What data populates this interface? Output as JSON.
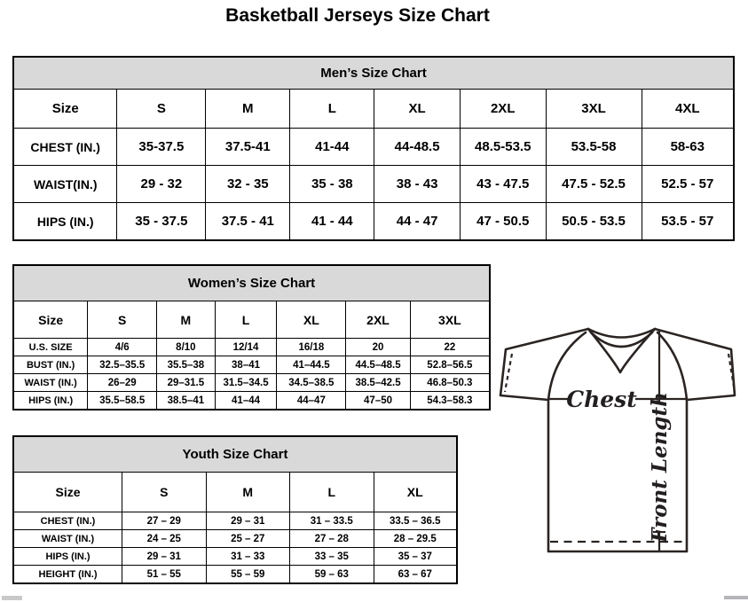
{
  "page_title": "Basketball Jerseys Size Chart",
  "colors": {
    "table_header_fill": "#d9d9d9",
    "border": "#000000",
    "diagram_ink": "#2a2422",
    "background": "#ffffff"
  },
  "tables": {
    "mens": {
      "title": "Men’s Size Chart",
      "columns": [
        "Size",
        "S",
        "M",
        "L",
        "XL",
        "2XL",
        "3XL",
        "4XL"
      ],
      "rows": [
        {
          "label": "CHEST (IN.)",
          "values": [
            "35-37.5",
            "37.5-41",
            "41-44",
            "44-48.5",
            "48.5-53.5",
            "53.5-58",
            "58-63"
          ]
        },
        {
          "label": "WAIST(IN.)",
          "values": [
            "29 - 32",
            "32 - 35",
            "35 - 38",
            "38 - 43",
            "43 - 47.5",
            "47.5 - 52.5",
            "52.5 - 57"
          ]
        },
        {
          "label": "HIPS (IN.)",
          "values": [
            "35 - 37.5",
            "37.5 - 41",
            "41 - 44",
            "44 - 47",
            "47 - 50.5",
            "50.5 - 53.5",
            "53.5 - 57"
          ]
        }
      ]
    },
    "womens": {
      "title": "Women’s Size Chart",
      "columns": [
        "Size",
        "S",
        "M",
        "L",
        "XL",
        "2XL",
        "3XL"
      ],
      "rows": [
        {
          "label": "U.S. SIZE",
          "values": [
            "4/6",
            "8/10",
            "12/14",
            "16/18",
            "20",
            "22"
          ]
        },
        {
          "label": "BUST (IN.)",
          "values": [
            "32.5–35.5",
            "35.5–38",
            "38–41",
            "41–44.5",
            "44.5–48.5",
            "52.8–56.5"
          ]
        },
        {
          "label": "WAIST (IN.)",
          "values": [
            "26–29",
            "29–31.5",
            "31.5–34.5",
            "34.5–38.5",
            "38.5–42.5",
            "46.8–50.3"
          ]
        },
        {
          "label": "HIPS (IN.)",
          "values": [
            "35.5–58.5",
            "38.5–41",
            "41–44",
            "44–47",
            "47–50",
            "54.3–58.3"
          ]
        }
      ]
    },
    "youth": {
      "title": "Youth Size Chart",
      "columns": [
        "Size",
        "S",
        "M",
        "L",
        "XL"
      ],
      "rows": [
        {
          "label": "CHEST (IN.)",
          "values": [
            "27 – 29",
            "29 – 31",
            "31 – 33.5",
            "33.5 – 36.5"
          ]
        },
        {
          "label": "WAIST (IN.)",
          "values": [
            "24 – 25",
            "25 – 27",
            "27 – 28",
            "28 – 29.5"
          ]
        },
        {
          "label": "HIPS (IN.)",
          "values": [
            "29 – 31",
            "31 – 33",
            "33 – 35",
            "35 – 37"
          ]
        },
        {
          "label": "HEIGHT (IN.)",
          "values": [
            "51 – 55",
            "55 – 59",
            "59 – 63",
            "63 – 67"
          ]
        }
      ]
    }
  },
  "diagram": {
    "chest_label": "Chest",
    "front_length_label": "Front Length"
  }
}
